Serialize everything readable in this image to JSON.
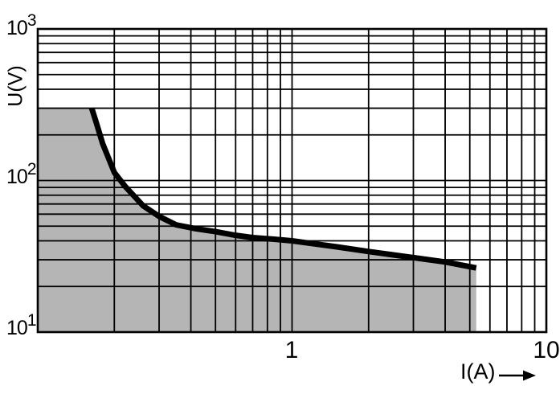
{
  "figure": {
    "background_color": "#ffffff",
    "grid_color": "#000000",
    "frame_color": "#000000"
  },
  "y_axis": {
    "label": "U(V)",
    "powers": [
      {
        "base": "10",
        "exp": "3",
        "value": 1000
      },
      {
        "base": "10",
        "exp": "2",
        "value": 100
      },
      {
        "base": "10",
        "exp": "1",
        "value": 10
      }
    ]
  },
  "x_axis": {
    "label": "I(A)",
    "ticks": [
      {
        "label": "1",
        "value": 1
      },
      {
        "label": "10",
        "value": 10
      }
    ]
  },
  "chart_data": {
    "type": "area",
    "title": "",
    "xlabel": "I(A)",
    "ylabel": "U(V)",
    "x_scale": "log",
    "y_scale": "log",
    "xlim": [
      0.1,
      10
    ],
    "ylim": [
      10,
      1000
    ],
    "grid": "full log minor grid, both axes, black lines on white",
    "legend": "none",
    "fill_color": "#b5b5b5",
    "line_color": "#000000",
    "curve_line_width": 7,
    "description": "Maximum load breaking capacity limit curve; shaded grey area below/left of the curve is the permissible U/I region",
    "area_top_left_point": [
      0.1,
      300
    ],
    "curve_points": [
      [
        0.163,
        300
      ],
      [
        0.17,
        240
      ],
      [
        0.18,
        175
      ],
      [
        0.2,
        113
      ],
      [
        0.22,
        92
      ],
      [
        0.26,
        68
      ],
      [
        0.3,
        58
      ],
      [
        0.35,
        51
      ],
      [
        0.42,
        48
      ],
      [
        0.5,
        46
      ],
      [
        0.6,
        43.5
      ],
      [
        0.7,
        42
      ],
      [
        0.85,
        41
      ],
      [
        1.0,
        40
      ],
      [
        1.5,
        36.5
      ],
      [
        2.0,
        34
      ],
      [
        2.5,
        32.3
      ],
      [
        3.0,
        31
      ],
      [
        4.0,
        29
      ],
      [
        5.3,
        26.5
      ]
    ]
  }
}
